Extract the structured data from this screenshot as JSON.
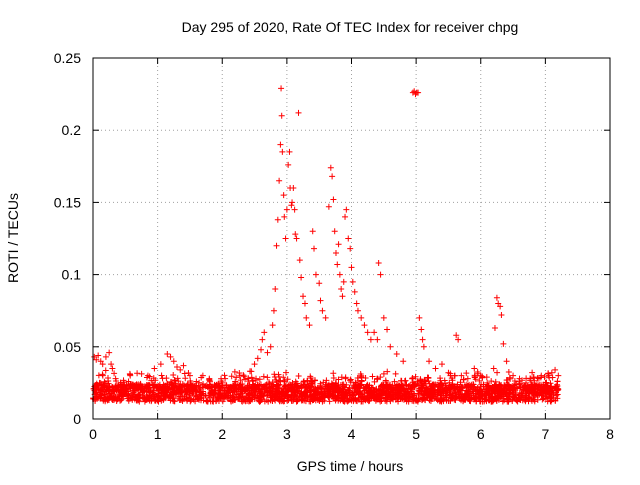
{
  "chart_data": {
    "type": "scatter",
    "title": "Day 295 of 2020, Rate Of TEC Index for receiver chpg",
    "xlabel": "GPS time / hours",
    "ylabel": "ROTI / TECUs",
    "xlim": [
      0,
      8
    ],
    "ylim": [
      0,
      0.25
    ],
    "x_ticks": [
      0,
      1,
      2,
      3,
      4,
      5,
      6,
      7,
      8
    ],
    "x_tick_labels": [
      "0",
      "1",
      "2",
      "3",
      "4",
      "5",
      "6",
      "7",
      "8"
    ],
    "y_ticks": [
      0,
      0.05,
      0.1,
      0.15,
      0.2,
      0.25
    ],
    "y_tick_labels": [
      "0",
      "0.05",
      "0.1",
      "0.15",
      "0.2",
      "0.25"
    ],
    "grid": true,
    "marker": "+",
    "series": [
      {
        "name": "ROTI",
        "color": "#ff0000",
        "points": [
          [
            0.02,
            0.043
          ],
          [
            0.05,
            0.041
          ],
          [
            0.08,
            0.044
          ],
          [
            0.12,
            0.04
          ],
          [
            0.15,
            0.038
          ],
          [
            0.2,
            0.043
          ],
          [
            0.25,
            0.046
          ],
          [
            0.28,
            0.038
          ],
          [
            0.3,
            0.035
          ],
          [
            0.1,
            0.025
          ],
          [
            0.18,
            0.022
          ],
          [
            0.35,
            0.028
          ],
          [
            0.45,
            0.024
          ],
          [
            0.55,
            0.026
          ],
          [
            0.7,
            0.024
          ],
          [
            0.85,
            0.03
          ],
          [
            0.95,
            0.035
          ],
          [
            1.05,
            0.038
          ],
          [
            1.15,
            0.045
          ],
          [
            1.2,
            0.043
          ],
          [
            1.25,
            0.04
          ],
          [
            1.3,
            0.036
          ],
          [
            1.35,
            0.034
          ],
          [
            1.4,
            0.037
          ],
          [
            1.5,
            0.03
          ],
          [
            1.6,
            0.026
          ],
          [
            1.7,
            0.03
          ],
          [
            1.8,
            0.028
          ],
          [
            1.9,
            0.022
          ],
          [
            2.0,
            0.025
          ],
          [
            2.1,
            0.02
          ],
          [
            2.2,
            0.026
          ],
          [
            2.3,
            0.022
          ],
          [
            2.4,
            0.028
          ],
          [
            2.45,
            0.033
          ],
          [
            2.5,
            0.038
          ],
          [
            2.55,
            0.042
          ],
          [
            2.6,
            0.048
          ],
          [
            2.62,
            0.055
          ],
          [
            2.65,
            0.06
          ],
          [
            2.7,
            0.046
          ],
          [
            2.75,
            0.05
          ],
          [
            2.78,
            0.065
          ],
          [
            2.8,
            0.075
          ],
          [
            2.82,
            0.09
          ],
          [
            2.84,
            0.12
          ],
          [
            2.86,
            0.138
          ],
          [
            2.88,
            0.165
          ],
          [
            2.9,
            0.19
          ],
          [
            2.91,
            0.229
          ],
          [
            2.92,
            0.21
          ],
          [
            2.93,
            0.185
          ],
          [
            2.95,
            0.155
          ],
          [
            2.96,
            0.14
          ],
          [
            2.98,
            0.125
          ],
          [
            3.0,
            0.145
          ],
          [
            3.02,
            0.176
          ],
          [
            3.04,
            0.185
          ],
          [
            3.05,
            0.16
          ],
          [
            3.07,
            0.148
          ],
          [
            3.08,
            0.15
          ],
          [
            3.1,
            0.16
          ],
          [
            3.12,
            0.145
          ],
          [
            3.13,
            0.128
          ],
          [
            3.15,
            0.125
          ],
          [
            3.18,
            0.212
          ],
          [
            3.2,
            0.11
          ],
          [
            3.22,
            0.098
          ],
          [
            3.25,
            0.085
          ],
          [
            3.28,
            0.08
          ],
          [
            3.3,
            0.07
          ],
          [
            3.35,
            0.065
          ],
          [
            3.4,
            0.13
          ],
          [
            3.42,
            0.118
          ],
          [
            3.45,
            0.1
          ],
          [
            3.5,
            0.094
          ],
          [
            3.52,
            0.082
          ],
          [
            3.55,
            0.075
          ],
          [
            3.6,
            0.07
          ],
          [
            3.65,
            0.147
          ],
          [
            3.68,
            0.174
          ],
          [
            3.7,
            0.168
          ],
          [
            3.72,
            0.152
          ],
          [
            3.74,
            0.13
          ],
          [
            3.76,
            0.115
          ],
          [
            3.78,
            0.107
          ],
          [
            3.8,
            0.121
          ],
          [
            3.82,
            0.1
          ],
          [
            3.84,
            0.09
          ],
          [
            3.86,
            0.085
          ],
          [
            3.88,
            0.095
          ],
          [
            3.9,
            0.14
          ],
          [
            3.92,
            0.145
          ],
          [
            3.95,
            0.125
          ],
          [
            3.98,
            0.118
          ],
          [
            4.0,
            0.105
          ],
          [
            4.02,
            0.095
          ],
          [
            4.05,
            0.088
          ],
          [
            4.08,
            0.08
          ],
          [
            4.1,
            0.075
          ],
          [
            4.15,
            0.07
          ],
          [
            4.2,
            0.065
          ],
          [
            4.25,
            0.06
          ],
          [
            4.3,
            0.055
          ],
          [
            4.35,
            0.06
          ],
          [
            4.4,
            0.055
          ],
          [
            4.42,
            0.108
          ],
          [
            4.45,
            0.1
          ],
          [
            4.5,
            0.07
          ],
          [
            4.55,
            0.062
          ],
          [
            4.6,
            0.05
          ],
          [
            4.7,
            0.045
          ],
          [
            4.8,
            0.04
          ],
          [
            4.95,
            0.226
          ],
          [
            4.97,
            0.227
          ],
          [
            4.99,
            0.225
          ],
          [
            5.01,
            0.226
          ],
          [
            5.03,
            0.226
          ],
          [
            5.05,
            0.07
          ],
          [
            5.08,
            0.062
          ],
          [
            5.1,
            0.055
          ],
          [
            5.12,
            0.05
          ],
          [
            5.2,
            0.04
          ],
          [
            5.3,
            0.035
          ],
          [
            5.4,
            0.038
          ],
          [
            5.5,
            0.032
          ],
          [
            5.6,
            0.03
          ],
          [
            5.62,
            0.058
          ],
          [
            5.65,
            0.055
          ],
          [
            5.7,
            0.03
          ],
          [
            5.8,
            0.028
          ],
          [
            5.9,
            0.035
          ],
          [
            6.0,
            0.03
          ],
          [
            6.1,
            0.025
          ],
          [
            6.2,
            0.035
          ],
          [
            6.22,
            0.063
          ],
          [
            6.25,
            0.084
          ],
          [
            6.27,
            0.08
          ],
          [
            6.3,
            0.078
          ],
          [
            6.32,
            0.072
          ],
          [
            6.35,
            0.052
          ],
          [
            6.4,
            0.04
          ],
          [
            6.5,
            0.03
          ],
          [
            6.6,
            0.028
          ],
          [
            6.7,
            0.025
          ],
          [
            6.8,
            0.022
          ],
          [
            6.9,
            0.028
          ],
          [
            7.0,
            0.025
          ],
          [
            7.05,
            0.03
          ],
          [
            7.1,
            0.032
          ],
          [
            7.15,
            0.034
          ],
          [
            7.2,
            0.03
          ]
        ]
      }
    ]
  }
}
